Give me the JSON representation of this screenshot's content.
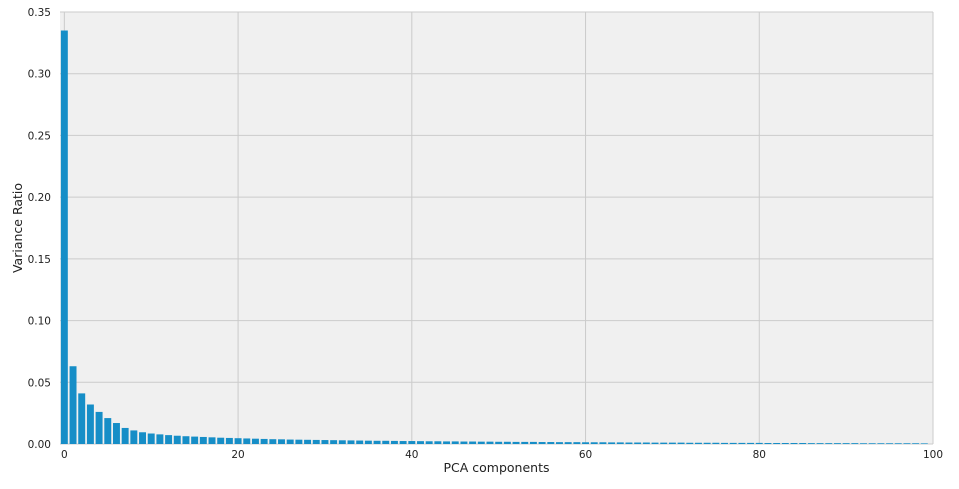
{
  "chart_data": {
    "type": "bar",
    "title": "",
    "xlabel": "PCA components",
    "ylabel": "Variance Ratio",
    "xlim": [
      -0.5,
      100
    ],
    "ylim": [
      0,
      0.35
    ],
    "x_ticks": [
      0,
      20,
      40,
      60,
      80,
      100
    ],
    "y_ticks": [
      0.0,
      0.05,
      0.1,
      0.15,
      0.2,
      0.25,
      0.3,
      0.35
    ],
    "x_tick_labels": [
      "0",
      "20",
      "40",
      "60",
      "80",
      "100"
    ],
    "y_tick_labels": [
      "0.00",
      "0.05",
      "0.10",
      "0.15",
      "0.20",
      "0.25",
      "0.30",
      "0.35"
    ],
    "grid": true,
    "colors": {
      "bar": "#168ec7",
      "background": "#f0f0f0",
      "grid": "#cbcbcb"
    },
    "x": [
      0,
      1,
      2,
      3,
      4,
      5,
      6,
      7,
      8,
      9,
      10,
      11,
      12,
      13,
      14,
      15,
      16,
      17,
      18,
      19,
      20,
      21,
      22,
      23,
      24,
      25,
      26,
      27,
      28,
      29,
      30,
      31,
      32,
      33,
      34,
      35,
      36,
      37,
      38,
      39,
      40,
      41,
      42,
      43,
      44,
      45,
      46,
      47,
      48,
      49,
      50,
      51,
      52,
      53,
      54,
      55,
      56,
      57,
      58,
      59,
      60,
      61,
      62,
      63,
      64,
      65,
      66,
      67,
      68,
      69,
      70,
      71,
      72,
      73,
      74,
      75,
      76,
      77,
      78,
      79,
      80,
      81,
      82,
      83,
      84,
      85,
      86,
      87,
      88,
      89,
      90,
      91,
      92,
      93,
      94,
      95,
      96,
      97,
      98,
      99
    ],
    "values": [
      0.335,
      0.063,
      0.041,
      0.032,
      0.026,
      0.021,
      0.017,
      0.013,
      0.011,
      0.0095,
      0.0085,
      0.0078,
      0.0072,
      0.0067,
      0.0063,
      0.006,
      0.0057,
      0.0054,
      0.0051,
      0.0049,
      0.0047,
      0.0045,
      0.0043,
      0.0041,
      0.0039,
      0.0038,
      0.0036,
      0.0035,
      0.0034,
      0.0033,
      0.0032,
      0.0031,
      0.003,
      0.0029,
      0.0028,
      0.0027,
      0.0026,
      0.0026,
      0.0025,
      0.0024,
      0.0024,
      0.0023,
      0.0022,
      0.0022,
      0.0021,
      0.0021,
      0.002,
      0.002,
      0.0019,
      0.0019,
      0.0018,
      0.0018,
      0.0017,
      0.0017,
      0.0017,
      0.0016,
      0.0016,
      0.0015,
      0.0015,
      0.0015,
      0.0014,
      0.0014,
      0.0014,
      0.0013,
      0.0013,
      0.0012,
      0.0012,
      0.0012,
      0.0011,
      0.0011,
      0.0011,
      0.0011,
      0.001,
      0.001,
      0.001,
      0.001,
      0.0009,
      0.0009,
      0.0009,
      0.0009,
      0.0009,
      0.0008,
      0.0008,
      0.0008,
      0.0008,
      0.0008,
      0.0007,
      0.0007,
      0.0007,
      0.0007,
      0.0007,
      0.0007,
      0.0006,
      0.0006,
      0.0006,
      0.0006,
      0.0006,
      0.0006,
      0.0006,
      0.0005
    ]
  }
}
